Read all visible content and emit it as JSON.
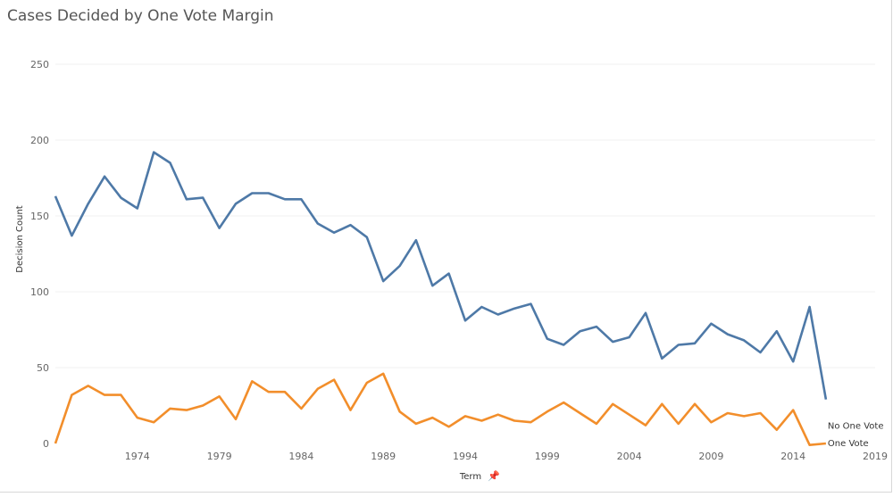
{
  "chart_data": {
    "type": "line",
    "title": "Cases Decided by One Vote Margin",
    "xlabel": "Term",
    "ylabel": "Decision Count",
    "xlim": [
      1969,
      2019
    ],
    "ylim": [
      0,
      250
    ],
    "y_ticks": [
      0,
      50,
      100,
      150,
      200,
      250
    ],
    "x_ticks": [
      1974,
      1979,
      1984,
      1989,
      1994,
      1999,
      2004,
      2009,
      2014,
      2019
    ],
    "grid": true,
    "x": [
      1969,
      1970,
      1971,
      1972,
      1973,
      1974,
      1975,
      1976,
      1977,
      1978,
      1979,
      1980,
      1981,
      1982,
      1983,
      1984,
      1985,
      1986,
      1987,
      1988,
      1989,
      1990,
      1991,
      1992,
      1993,
      1994,
      1995,
      1996,
      1997,
      1998,
      1999,
      2000,
      2001,
      2002,
      2003,
      2004,
      2005,
      2006,
      2007,
      2008,
      2009,
      2010,
      2011,
      2012,
      2013,
      2014,
      2015,
      2016
    ],
    "series": [
      {
        "name": "No One Vote",
        "color": "#4e79a7",
        "values": [
          163,
          137,
          158,
          176,
          162,
          155,
          192,
          185,
          161,
          162,
          142,
          158,
          165,
          165,
          161,
          161,
          145,
          139,
          144,
          136,
          107,
          117,
          134,
          104,
          112,
          81,
          90,
          85,
          89,
          92,
          69,
          65,
          74,
          77,
          67,
          70,
          86,
          56,
          65,
          66,
          79,
          72,
          68,
          60,
          74,
          54,
          90,
          29
        ]
      },
      {
        "name": "One Vote",
        "color": "#f28e2b",
        "values": [
          0,
          32,
          38,
          32,
          32,
          17,
          14,
          23,
          22,
          25,
          31,
          16,
          41,
          34,
          34,
          23,
          36,
          42,
          22,
          40,
          46,
          21,
          13,
          17,
          11,
          18,
          15,
          19,
          15,
          14,
          21,
          27,
          20,
          13,
          26,
          19,
          12,
          26,
          13,
          26,
          14,
          20,
          18,
          20,
          9,
          22,
          -1,
          0
        ]
      }
    ]
  },
  "pin_icon": "pin-icon"
}
